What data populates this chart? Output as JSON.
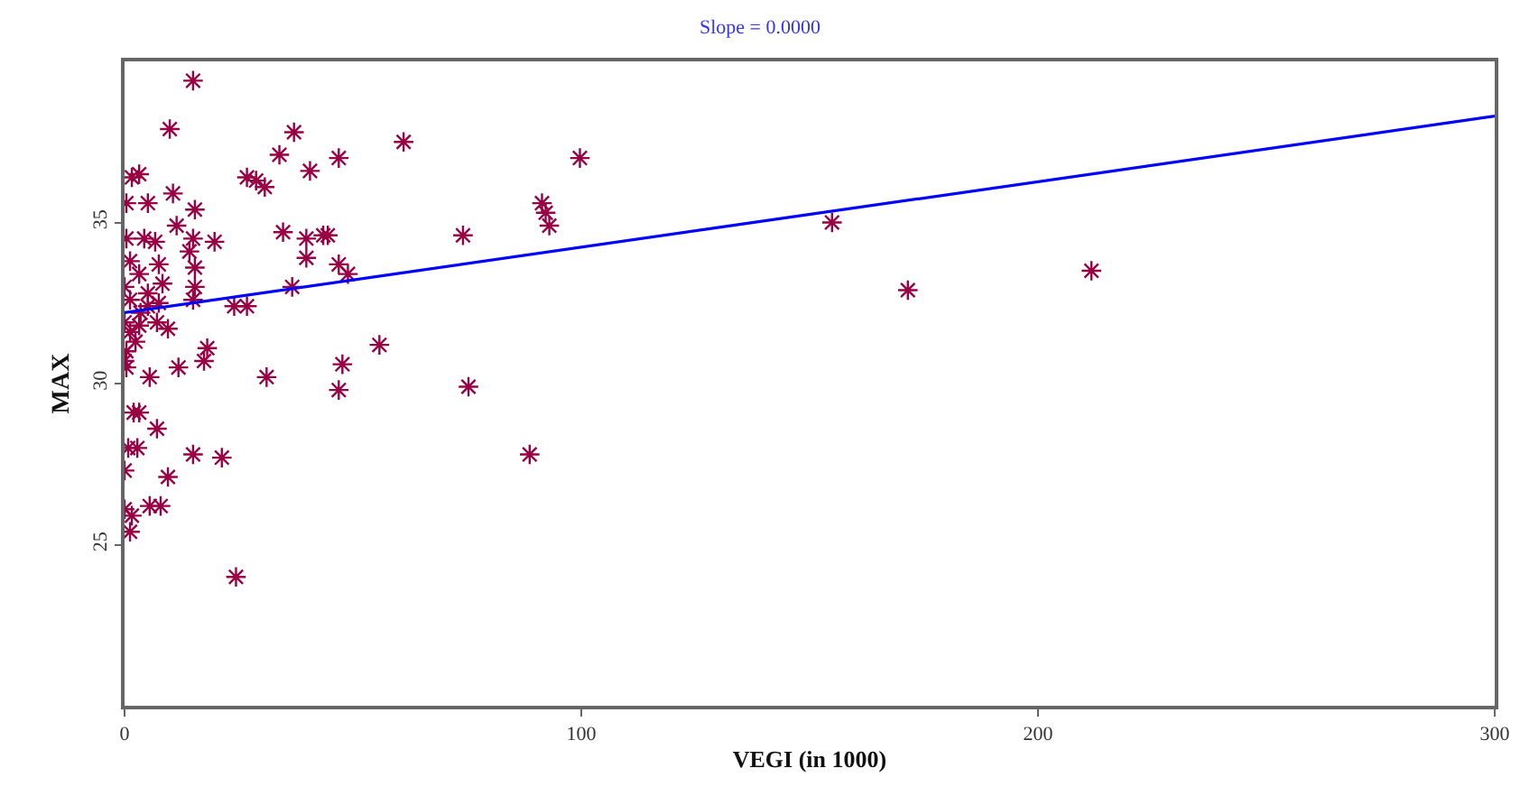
{
  "chart_data": {
    "type": "scatter",
    "title": "Slope = 0.0000",
    "xlabel": "VEGI (in 1000)",
    "ylabel": "MAX",
    "xlim": [
      0,
      300
    ],
    "xticks": [
      0,
      100,
      200,
      300
    ],
    "ylim": [
      20,
      40
    ],
    "yticks": [
      25,
      30,
      35
    ],
    "grid": false,
    "series": [
      {
        "marker": "cross",
        "color": "#990044",
        "x": [
          15.0,
          9.9,
          37.1,
          61.1,
          33.9,
          46.9,
          99.7,
          40.6,
          3.2,
          1.6,
          26.8,
          30.7,
          28.8,
          91.4,
          92.2,
          93.0,
          74.1,
          34.7,
          44.5,
          43.5,
          39.8,
          39.8,
          46.9,
          48.9,
          36.7,
          24.0,
          26.8,
          55.8,
          18.1,
          17.4,
          47.7,
          11.8,
          31.1,
          5.5,
          46.9,
          75.3,
          3.2,
          2.0,
          7.1,
          0.8,
          2.8,
          15.0,
          21.3,
          88.7,
          0,
          9.5,
          5.5,
          7.9,
          0,
          1.6,
          1.2,
          24.4,
          0.4,
          5.1,
          10.6,
          15.4,
          11.4,
          4.3,
          6.7,
          19.7,
          15.0,
          0.4,
          14.2,
          1.2,
          7.5,
          15.4,
          3.2,
          8.3,
          0,
          15.4,
          5.1,
          1.2,
          15.0,
          7.5,
          3.5,
          0,
          9.5,
          1.2,
          2.4,
          0.4,
          0,
          0.4,
          3.2,
          5.1,
          7.1,
          154.9,
          171.5,
          211.7
        ],
        "values": [
          39.4,
          37.9,
          37.8,
          37.5,
          37.1,
          37.0,
          37.0,
          36.6,
          36.5,
          36.4,
          36.4,
          36.1,
          36.3,
          35.6,
          35.3,
          34.9,
          34.6,
          34.7,
          34.6,
          34.6,
          34.5,
          33.9,
          33.7,
          33.4,
          33.0,
          32.4,
          32.4,
          31.2,
          31.1,
          30.7,
          30.6,
          30.5,
          30.2,
          30.2,
          29.8,
          29.9,
          29.1,
          29.1,
          28.6,
          28.0,
          28.0,
          27.8,
          27.7,
          27.8,
          27.3,
          27.1,
          26.2,
          26.2,
          26.1,
          25.9,
          25.4,
          24.0,
          35.6,
          35.6,
          35.9,
          35.4,
          34.9,
          34.5,
          34.4,
          34.4,
          34.5,
          34.5,
          34.1,
          33.8,
          33.7,
          33.6,
          33.4,
          33.1,
          33.0,
          33.0,
          32.8,
          32.6,
          32.6,
          32.5,
          32.2,
          31.9,
          31.7,
          31.6,
          31.3,
          31.0,
          30.7,
          30.5,
          31.8,
          32.4,
          31.9,
          35.0,
          32.9,
          33.5
        ]
      },
      {
        "type": "line",
        "color": "#0000ff",
        "line_style": "solid",
        "x": [
          0,
          300
        ],
        "values": [
          32.2,
          38.3
        ]
      }
    ]
  }
}
